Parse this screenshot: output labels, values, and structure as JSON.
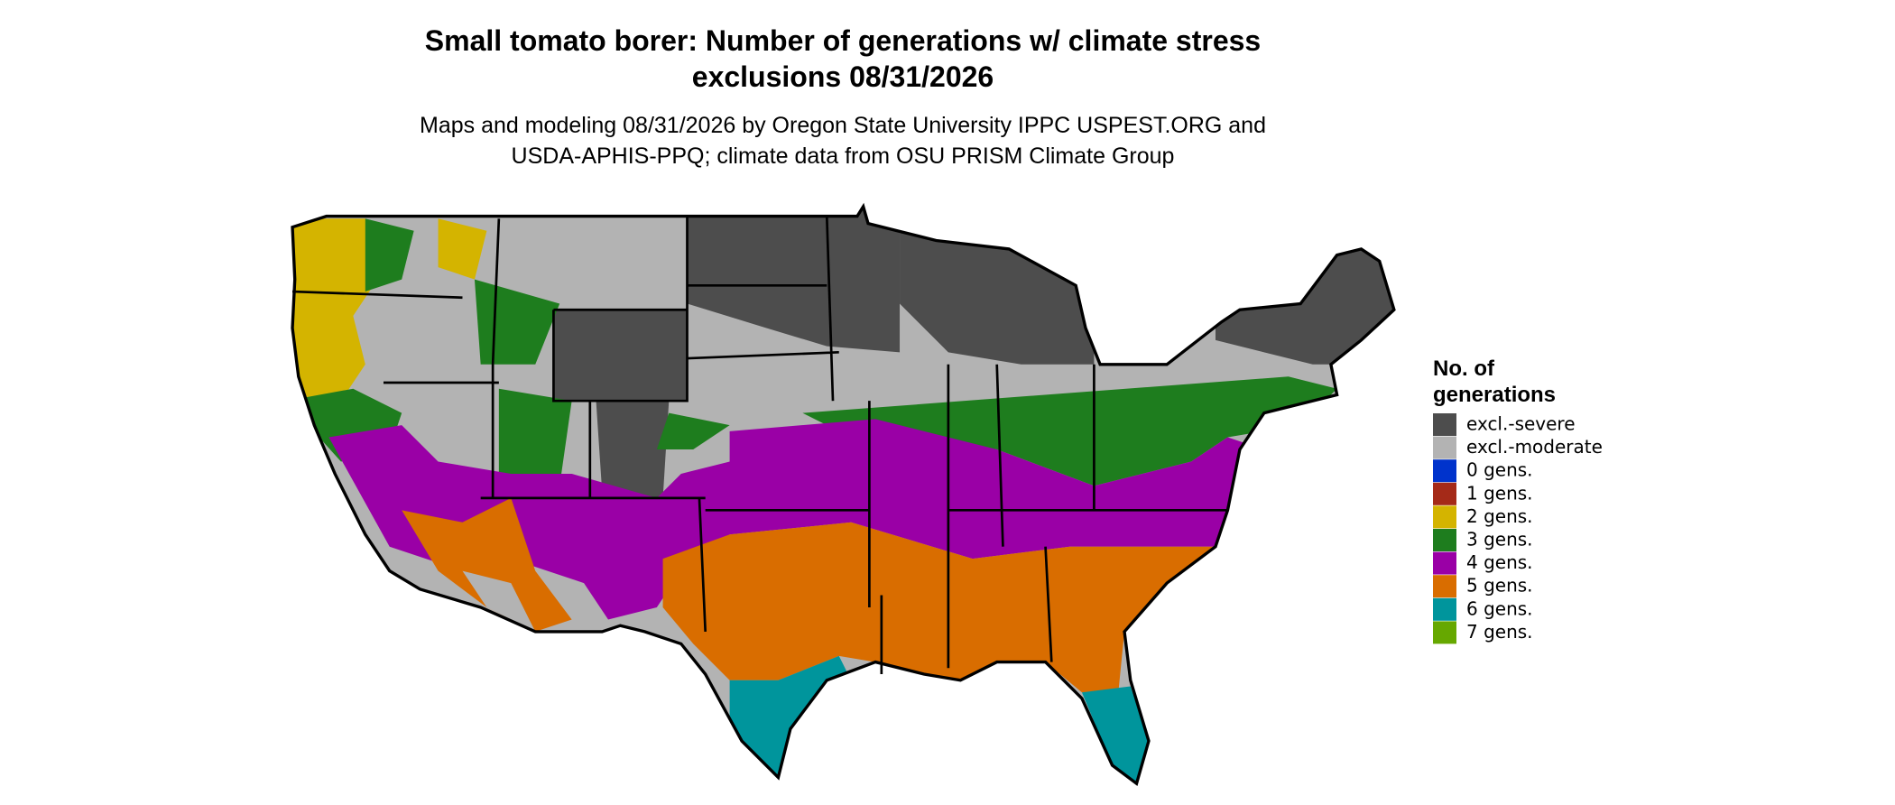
{
  "header": {
    "title_lines": [
      "Small tomato borer: Number of generations w/ climate stress",
      "exclusions 08/31/2026"
    ],
    "subtitle_lines": [
      "Maps and modeling 08/31/2026 by Oregon State University IPPC USPEST.ORG and",
      "USDA-APHIS-PPQ; climate data from OSU PRISM Climate Group"
    ]
  },
  "legend": {
    "title_lines": [
      "No. of",
      "generations"
    ],
    "items": [
      {
        "label": "excl.-severe",
        "color": "#4d4d4d"
      },
      {
        "label": "excl.-moderate",
        "color": "#b3b3b3"
      },
      {
        "label": "0 gens.",
        "color": "#0033cc"
      },
      {
        "label": "1 gens.",
        "color": "#a52a18"
      },
      {
        "label": "2 gens.",
        "color": "#d4b400"
      },
      {
        "label": "3 gens.",
        "color": "#1e7d1e"
      },
      {
        "label": "4 gens.",
        "color": "#9a00a6"
      },
      {
        "label": "5 gens.",
        "color": "#d96d00"
      },
      {
        "label": "6 gens.",
        "color": "#00959c"
      },
      {
        "label": "7 gens.",
        "color": "#66a800"
      }
    ]
  }
}
